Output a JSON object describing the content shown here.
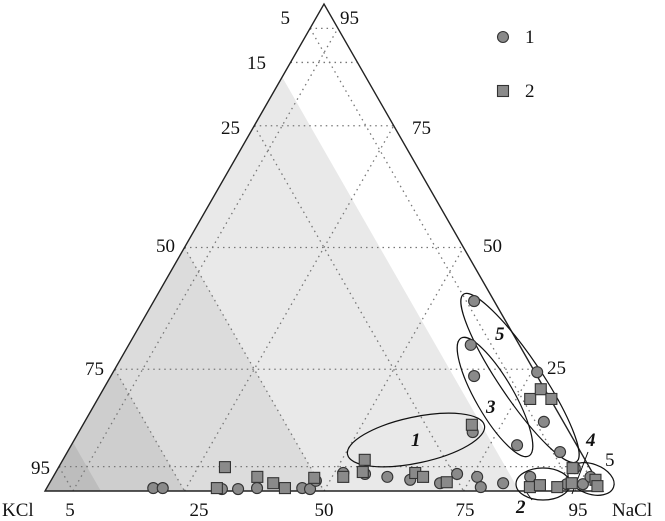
{
  "chart_data": {
    "type": "scatter",
    "subtype": "ternary",
    "corner_labels": {
      "left": "KCl",
      "right": "NaCl"
    },
    "point_format": [
      "NaCl %",
      "apex %"
    ],
    "ticks": {
      "left": [
        "5",
        "15",
        "25",
        "50",
        "75",
        "95"
      ],
      "right": [
        "95",
        "75",
        "50",
        "25",
        "5"
      ],
      "bottom": [
        "5",
        "25",
        "50",
        "75",
        "95"
      ]
    },
    "grid": true,
    "legend_position": "top-right",
    "shading": "gray bands increasing toward KCl corner",
    "colors": {
      "marker_fill": "#8a8a8a",
      "marker_stroke": "#333333",
      "shade_light": "#e9e9e9",
      "shade_mid": "#dcdcdc",
      "shade_dark": "#cecece",
      "shade_darkest": "#bdbdbd"
    },
    "series": [
      {
        "name": "1",
        "marker": "circle",
        "points": [
          [
            19.1,
            0.6
          ],
          [
            20.8,
            0.6
          ],
          [
            31.5,
            0.4
          ],
          [
            34.4,
            0.4
          ],
          [
            37.7,
            0.6
          ],
          [
            45.8,
            0.6
          ],
          [
            47.3,
            0.4
          ],
          [
            47.5,
            2.1
          ],
          [
            51.6,
            3.7
          ],
          [
            55.6,
            3.5
          ],
          [
            59.9,
            2.9
          ],
          [
            64.3,
            2.3
          ],
          [
            70.0,
            1.6
          ],
          [
            72.1,
            3.5
          ],
          [
            76.0,
            2.9
          ],
          [
            77.7,
            0.8
          ],
          [
            81.3,
            1.6
          ],
          [
            85.5,
            2.9
          ],
          [
            70.6,
            12.1
          ],
          [
            57.4,
            39.0
          ],
          [
            61.3,
            30.0
          ],
          [
            65.1,
            23.6
          ],
          [
            76.0,
            24.4
          ],
          [
            82.3,
            14.2
          ],
          [
            79.9,
            9.4
          ],
          [
            88.3,
            8.0
          ],
          [
            92.8,
            1.4
          ],
          [
            95.7,
            1.4
          ],
          [
            96.3,
            2.9
          ],
          [
            92.6,
            4.7
          ]
        ]
      },
      {
        "name": "2",
        "marker": "square",
        "points": [
          [
            29.8,
            4.9
          ],
          [
            30.5,
            0.6
          ],
          [
            36.6,
            2.9
          ],
          [
            40.1,
            1.6
          ],
          [
            42.7,
            0.6
          ],
          [
            46.9,
            2.7
          ],
          [
            52.0,
            2.9
          ],
          [
            54.1,
            6.4
          ],
          [
            55.0,
            3.9
          ],
          [
            64.5,
            3.7
          ],
          [
            66.3,
            2.9
          ],
          [
            71.1,
            1.8
          ],
          [
            69.7,
            13.6
          ],
          [
            77.5,
            18.9
          ],
          [
            78.4,
            20.9
          ],
          [
            81.3,
            18.9
          ],
          [
            86.5,
            0.8
          ],
          [
            88.1,
            1.2
          ],
          [
            91.4,
            0.8
          ],
          [
            92.2,
            4.7
          ],
          [
            93.6,
            1.6
          ],
          [
            97.5,
            2.3
          ],
          [
            98.5,
            1.0
          ]
        ]
      }
    ],
    "groups": [
      "1",
      "2",
      "3",
      "4",
      "5"
    ]
  }
}
